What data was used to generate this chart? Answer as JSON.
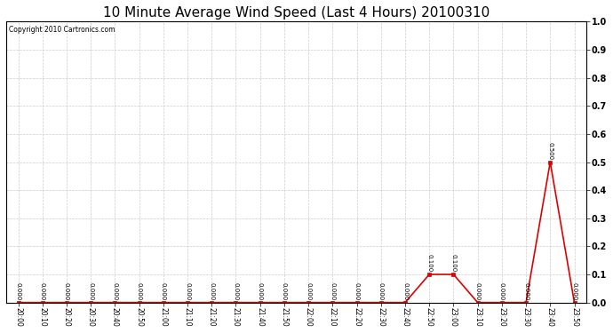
{
  "title": "10 Minute Average Wind Speed (Last 4 Hours) 20100310",
  "copyright": "Copyright 2010 Cartronics.com",
  "x_labels": [
    "20:00",
    "20:10",
    "20:20",
    "20:30",
    "20:40",
    "20:50",
    "21:00",
    "21:10",
    "21:20",
    "21:30",
    "21:40",
    "21:50",
    "22:00",
    "22:10",
    "22:20",
    "22:30",
    "22:40",
    "22:50",
    "23:00",
    "23:10",
    "23:20",
    "23:30",
    "23:40",
    "23:50"
  ],
  "y_values": [
    0.0,
    0.0,
    0.0,
    0.0,
    0.0,
    0.0,
    0.0,
    0.0,
    0.0,
    0.0,
    0.0,
    0.0,
    0.0,
    0.0,
    0.0,
    0.0,
    0.0,
    0.1,
    0.1,
    0.0,
    0.0,
    0.0,
    0.5,
    0.0
  ],
  "line_color": "#dd0000",
  "marker_color": "#dd0000",
  "bg_color": "#ffffff",
  "grid_color": "#cccccc",
  "ylim": [
    0.0,
    1.0
  ],
  "yticks": [
    0.0,
    0.1,
    0.2,
    0.3,
    0.4,
    0.5,
    0.6,
    0.7,
    0.8,
    0.9,
    1.0
  ],
  "title_fontsize": 11,
  "xlabel_fontsize": 5.5,
  "ylabel_fontsize": 7,
  "annotation_fontsize": 5.0,
  "copyright_fontsize": 5.5
}
